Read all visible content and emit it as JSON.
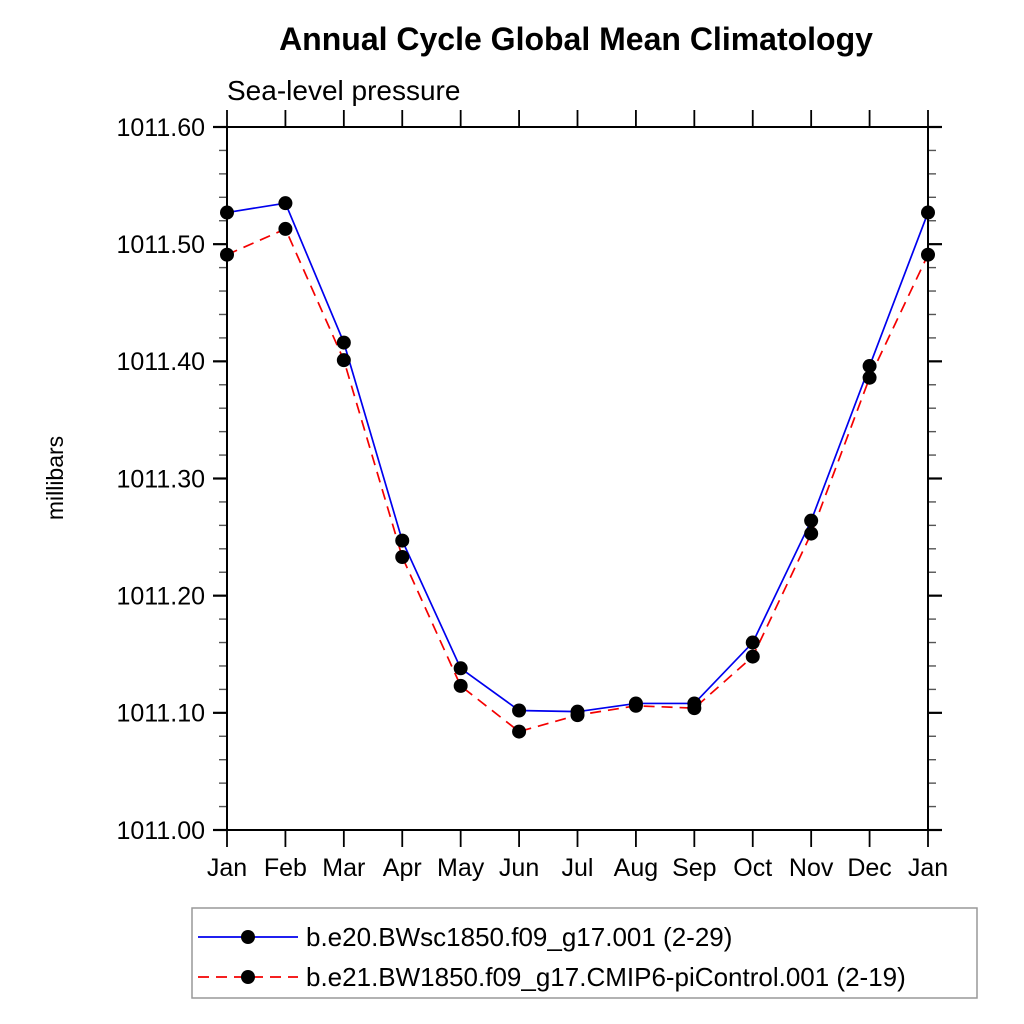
{
  "header": {
    "title": "Annual Cycle Global Mean Climatology",
    "subtitle": "Sea-level pressure"
  },
  "chart_data": {
    "type": "line",
    "title": "Annual Cycle Global Mean Climatology",
    "subtitle": "Sea-level pressure",
    "xlabel": "",
    "ylabel": "millibars",
    "x_categories": [
      "Jan",
      "Feb",
      "Mar",
      "Apr",
      "May",
      "Jun",
      "Jul",
      "Aug",
      "Sep",
      "Oct",
      "Nov",
      "Dec",
      "Jan"
    ],
    "ylim": [
      1011.0,
      1011.6
    ],
    "y_major_step": 0.1,
    "y_minor_step": 0.02,
    "y_tick_labels": [
      "1011.00",
      "1011.10",
      "1011.20",
      "1011.30",
      "1011.40",
      "1011.50",
      "1011.60"
    ],
    "grid": false,
    "legend_position": "bottom-left",
    "axis_color": "#000000",
    "minor_tick_color": "#555555",
    "marker_color": "#000000",
    "series": [
      {
        "name": "b.e20.BWsc1850.f09_g17.001 (2-29)",
        "color": "#0000ee",
        "style": "solid",
        "marker": "black-dot",
        "values": [
          1011.527,
          1011.535,
          1011.416,
          1011.247,
          1011.138,
          1011.102,
          1011.101,
          1011.108,
          1011.108,
          1011.16,
          1011.264,
          1011.396,
          1011.527
        ]
      },
      {
        "name": "b.e21.BW1850.f09_g17.CMIP6-piControl.001 (2-19)",
        "color": "#f40000",
        "style": "dashed",
        "marker": "black-dot",
        "values": [
          1011.491,
          1011.513,
          1011.401,
          1011.233,
          1011.123,
          1011.084,
          1011.098,
          1011.106,
          1011.104,
          1011.148,
          1011.253,
          1011.386,
          1011.491
        ]
      }
    ]
  }
}
